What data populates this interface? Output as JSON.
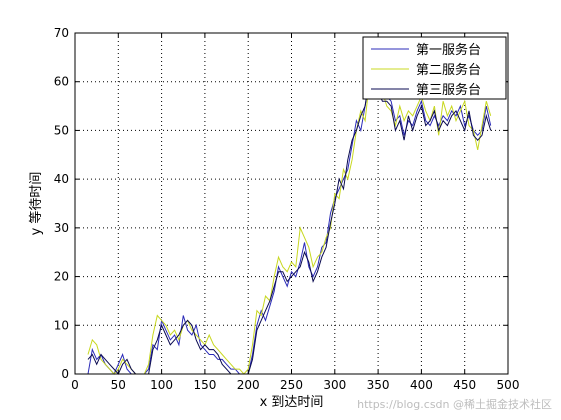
{
  "chart_data": {
    "type": "line",
    "title": "",
    "xlabel": "x  到达时间",
    "ylabel": "y  等待时间",
    "xlim": [
      0,
      500
    ],
    "ylim": [
      0,
      70
    ],
    "xticks": [
      0,
      50,
      100,
      150,
      200,
      250,
      300,
      350,
      400,
      450,
      500
    ],
    "yticks": [
      0,
      10,
      20,
      30,
      40,
      50,
      60,
      70
    ],
    "grid": true,
    "legend_position": "top-right",
    "series": [
      {
        "name": "第一服务台",
        "color": "#2b2bb8",
        "x": [
          15,
          20,
          25,
          30,
          35,
          40,
          45,
          50,
          55,
          60,
          65,
          70,
          75,
          80,
          85,
          90,
          95,
          100,
          105,
          110,
          115,
          120,
          125,
          130,
          135,
          140,
          145,
          150,
          155,
          160,
          165,
          170,
          175,
          180,
          185,
          190,
          195,
          200,
          205,
          210,
          215,
          220,
          225,
          230,
          235,
          240,
          245,
          250,
          255,
          260,
          265,
          270,
          275,
          280,
          285,
          290,
          295,
          300,
          305,
          310,
          315,
          320,
          325,
          330,
          335,
          340,
          345,
          350,
          355,
          360,
          365,
          370,
          375,
          380,
          385,
          390,
          395,
          400,
          405,
          410,
          415,
          420,
          425,
          430,
          435,
          440,
          445,
          450,
          455,
          460,
          465,
          470,
          475,
          480
        ],
        "y": [
          0,
          5,
          3,
          4,
          2,
          1,
          0,
          2,
          4,
          1,
          0,
          0,
          0,
          0,
          1,
          6,
          5,
          11,
          9,
          7,
          8,
          6,
          12,
          9,
          8,
          10,
          6,
          5,
          4,
          4,
          3,
          3,
          2,
          1,
          1,
          0,
          0,
          0,
          4,
          10,
          13,
          11,
          14,
          17,
          22,
          20,
          18,
          21,
          20,
          23,
          27,
          22,
          20,
          22,
          26,
          27,
          33,
          36,
          38,
          40,
          42,
          47,
          52,
          50,
          55,
          60,
          59,
          59,
          57,
          57,
          56,
          52,
          53,
          49,
          52,
          51,
          54,
          56,
          52,
          51,
          53,
          51,
          53,
          52,
          54,
          53,
          55,
          51,
          53,
          50,
          49,
          50,
          55,
          51
        ]
      },
      {
        "name": "第二服务台",
        "color": "#c8d820",
        "x": [
          15,
          20,
          25,
          30,
          35,
          40,
          45,
          50,
          55,
          60,
          65,
          70,
          75,
          80,
          85,
          90,
          95,
          100,
          105,
          110,
          115,
          120,
          125,
          130,
          135,
          140,
          145,
          150,
          155,
          160,
          165,
          170,
          175,
          180,
          185,
          190,
          195,
          200,
          205,
          210,
          215,
          220,
          225,
          230,
          235,
          240,
          245,
          250,
          255,
          260,
          265,
          270,
          275,
          280,
          285,
          290,
          295,
          300,
          305,
          310,
          315,
          320,
          325,
          330,
          335,
          340,
          345,
          350,
          355,
          360,
          365,
          370,
          375,
          380,
          385,
          390,
          395,
          400,
          405,
          410,
          415,
          420,
          425,
          430,
          435,
          440,
          445,
          450,
          455,
          460,
          465,
          470,
          475,
          480
        ],
        "y": [
          4,
          7,
          6,
          3,
          2,
          1,
          0,
          1,
          3,
          2,
          1,
          0,
          0,
          0,
          2,
          8,
          12,
          11,
          10,
          8,
          9,
          7,
          10,
          11,
          9,
          8,
          7,
          6,
          8,
          6,
          5,
          4,
          3,
          2,
          1,
          1,
          0,
          1,
          6,
          13,
          12,
          16,
          15,
          20,
          24,
          22,
          21,
          23,
          22,
          30,
          28,
          26,
          22,
          24,
          25,
          28,
          30,
          37,
          36,
          42,
          40,
          44,
          50,
          54,
          52,
          60,
          61,
          60,
          58,
          55,
          54,
          51,
          55,
          52,
          54,
          53,
          55,
          57,
          54,
          52,
          55,
          49,
          56,
          53,
          55,
          52,
          54,
          56,
          51,
          50,
          46,
          51,
          56,
          53
        ]
      },
      {
        "name": "第三服务台",
        "color": "#0a0a50",
        "x": [
          15,
          20,
          25,
          30,
          35,
          40,
          45,
          50,
          55,
          60,
          65,
          70,
          75,
          80,
          85,
          90,
          95,
          100,
          105,
          110,
          115,
          120,
          125,
          130,
          135,
          140,
          145,
          150,
          155,
          160,
          165,
          170,
          175,
          180,
          185,
          190,
          195,
          200,
          205,
          210,
          215,
          220,
          225,
          230,
          235,
          240,
          245,
          250,
          255,
          260,
          265,
          270,
          275,
          280,
          285,
          290,
          295,
          300,
          305,
          310,
          315,
          320,
          325,
          330,
          335,
          340,
          345,
          350,
          355,
          360,
          365,
          370,
          375,
          380,
          385,
          390,
          395,
          400,
          405,
          410,
          415,
          420,
          425,
          430,
          435,
          440,
          445,
          450,
          455,
          460,
          465,
          470,
          475,
          480
        ],
        "y": [
          3,
          4,
          2,
          4,
          3,
          2,
          1,
          0,
          2,
          3,
          1,
          0,
          0,
          0,
          0,
          5,
          7,
          10,
          8,
          6,
          7,
          8,
          10,
          11,
          10,
          7,
          5,
          6,
          5,
          5,
          4,
          2,
          1,
          0,
          0,
          0,
          0,
          0,
          3,
          9,
          11,
          13,
          15,
          18,
          21,
          21,
          19,
          20,
          21,
          22,
          25,
          23,
          19,
          21,
          24,
          26,
          31,
          35,
          40,
          38,
          44,
          48,
          50,
          53,
          55,
          61,
          60,
          58,
          56,
          56,
          55,
          50,
          52,
          48,
          53,
          50,
          53,
          55,
          51,
          52,
          54,
          50,
          52,
          51,
          53,
          54,
          52,
          50,
          54,
          49,
          48,
          49,
          53,
          50
        ]
      }
    ]
  },
  "watermark": "https://blog.csdn @稀土掘金技术社区"
}
